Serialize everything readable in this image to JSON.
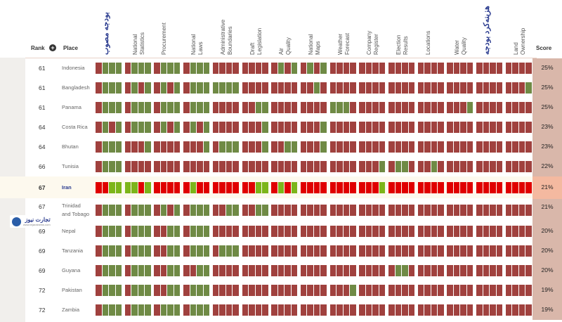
{
  "header": {
    "rank_label": "Rank",
    "sort_symbol": "+",
    "place_label": "Place",
    "score_label": "Score",
    "columns": [
      {
        "label": "بودجه مصوب",
        "rtl": true
      },
      {
        "label": "National\nStatistics"
      },
      {
        "label": "Procurement"
      },
      {
        "label": "National\nLaws"
      },
      {
        "label": "Administrative\nBoundaries"
      },
      {
        "label": "Draft\nLegislation"
      },
      {
        "label": "Air\nQuality"
      },
      {
        "label": "National\nMaps"
      },
      {
        "label": "Weather\nForecast"
      },
      {
        "label": "Company\nRegister"
      },
      {
        "label": "Election\nResults"
      },
      {
        "label": "Locations"
      },
      {
        "label": "Water\nQuality"
      },
      {
        "label": "هزینه‌کرد بودجه",
        "rtl": true
      },
      {
        "label": "Land\nOwnership"
      }
    ]
  },
  "colors": {
    "red": "#a0413e",
    "green": "#6f8a45",
    "bright_red": "#e00000",
    "bright_green": "#7cb51a",
    "score_bg": "#d9b7aa",
    "score_highlight": "#f4b9a0",
    "brand_blue": "#2a3b8f"
  },
  "watermark": {
    "text": "تجارت نیوز",
    "url": "www.tejaratnews.com",
    "icon": "logo-circle-icon"
  },
  "rows": [
    {
      "rank": "61",
      "place": "Indonesia",
      "score": "25%",
      "cells": [
        "rggg",
        "rggg",
        "rggg",
        "rggg",
        "rrrr",
        "rrrr",
        "rgrg",
        "rgrg",
        "rrrr",
        "rrrr",
        "rrrr",
        "rrrr",
        "rrrr",
        "rrrr",
        "rrrr"
      ]
    },
    {
      "rank": "61",
      "place": "Bangladesh",
      "score": "25%",
      "cells": [
        "rggg",
        "rgrg",
        "rgrg",
        "rggg",
        "gggg",
        "rrrr",
        "rrrr",
        "rrgr",
        "rrrr",
        "rrrr",
        "rrrr",
        "rrrr",
        "rrrr",
        "rrrr",
        "rrrg"
      ]
    },
    {
      "rank": "61",
      "place": "Panama",
      "score": "25%",
      "cells": [
        "rggg",
        "rggg",
        "rggg",
        "rggg",
        "rrrr",
        "rrgg",
        "rrrr",
        "rrrr",
        "gggr",
        "rrrr",
        "rrrr",
        "rrrr",
        "rrrg",
        "rrrr",
        "rrrr"
      ]
    },
    {
      "rank": "64",
      "place": "Costa Rica",
      "score": "23%",
      "cells": [
        "rgrg",
        "rggg",
        "rgrg",
        "rgrg",
        "rrrr",
        "rrrg",
        "rrrr",
        "rrrg",
        "rrrr",
        "rrrr",
        "rrrr",
        "rrrr",
        "rrrr",
        "rrrr",
        "rrrr"
      ]
    },
    {
      "rank": "64",
      "place": "Bhutan",
      "score": "23%",
      "cells": [
        "rggg",
        "rrrg",
        "rrrr",
        "rrrg",
        "rggg",
        "rrrg",
        "rrgg",
        "rrrg",
        "rrrr",
        "rrrr",
        "rrrr",
        "rrrr",
        "rrrr",
        "rrrr",
        "rrrr"
      ]
    },
    {
      "rank": "66",
      "place": "Tunisia",
      "score": "22%",
      "cells": [
        "rggg",
        "rrrr",
        "rrrr",
        "rrrr",
        "rrrr",
        "rrrr",
        "rrrr",
        "rrrr",
        "rrrr",
        "rrrg",
        "rggr",
        "rrgr",
        "rrrr",
        "rrrr",
        "rrrr"
      ]
    },
    {
      "rank": "67",
      "place": "Iran",
      "score": "21%",
      "highlight": true,
      "cells": [
        "RRGG",
        "GGRG",
        "RRRR",
        "RGRR",
        "RRRR",
        "RRGG",
        "RGRG",
        "RRRR",
        "RRRR",
        "RRRG",
        "RRRR",
        "RRRR",
        "RRRR",
        "RRRR",
        "RRRR"
      ]
    },
    {
      "rank": "67",
      "place": "Trinidad\nand Tobago",
      "score": "21%",
      "cells": [
        "rggg",
        "rggg",
        "rgrg",
        "rggg",
        "rrgg",
        "rrgg",
        "rrrr",
        "rrrr",
        "rrrr",
        "rrrr",
        "rrrr",
        "rrrr",
        "rrrr",
        "rrrr",
        "rrrr"
      ]
    },
    {
      "rank": "69",
      "place": "Nepal",
      "score": "20%",
      "cells": [
        "rggg",
        "rggg",
        "rrgg",
        "rggg",
        "rrrr",
        "rrrr",
        "rrrr",
        "rrrr",
        "rrrr",
        "rrrr",
        "rrrr",
        "rrrr",
        "rrrr",
        "rrrr",
        "rrrr"
      ]
    },
    {
      "rank": "69",
      "place": "Tanzania",
      "score": "20%",
      "cells": [
        "rggg",
        "rggg",
        "rrgg",
        "rggg",
        "rggg",
        "rrrr",
        "rrrr",
        "rrrr",
        "rrrr",
        "rrrr",
        "rrrr",
        "rrrr",
        "rrrr",
        "rrrr",
        "rrrr"
      ]
    },
    {
      "rank": "69",
      "place": "Guyana",
      "score": "20%",
      "cells": [
        "rggg",
        "rggg",
        "rrgg",
        "rrgg",
        "rrrr",
        "rrrr",
        "rrrr",
        "rrrr",
        "rrrr",
        "rrrr",
        "rggr",
        "rrrr",
        "rrrr",
        "rrrr",
        "rrrr"
      ]
    },
    {
      "rank": "72",
      "place": "Pakistan",
      "score": "19%",
      "cells": [
        "rggg",
        "rggg",
        "rrgg",
        "rggg",
        "rrrr",
        "rrrr",
        "rrrr",
        "rrrr",
        "rrrg",
        "rrrr",
        "rrrr",
        "rrrr",
        "rrrr",
        "rrrr",
        "rrrr"
      ]
    },
    {
      "rank": "72",
      "place": "Zambia",
      "score": "19%",
      "cells": [
        "rggg",
        "rggg",
        "rggg",
        "rggg",
        "rrrr",
        "rrrr",
        "rrrr",
        "rrrr",
        "rrrr",
        "rrrr",
        "rrrr",
        "rrrr",
        "rrrr",
        "rrrr",
        "rrrr"
      ]
    }
  ]
}
